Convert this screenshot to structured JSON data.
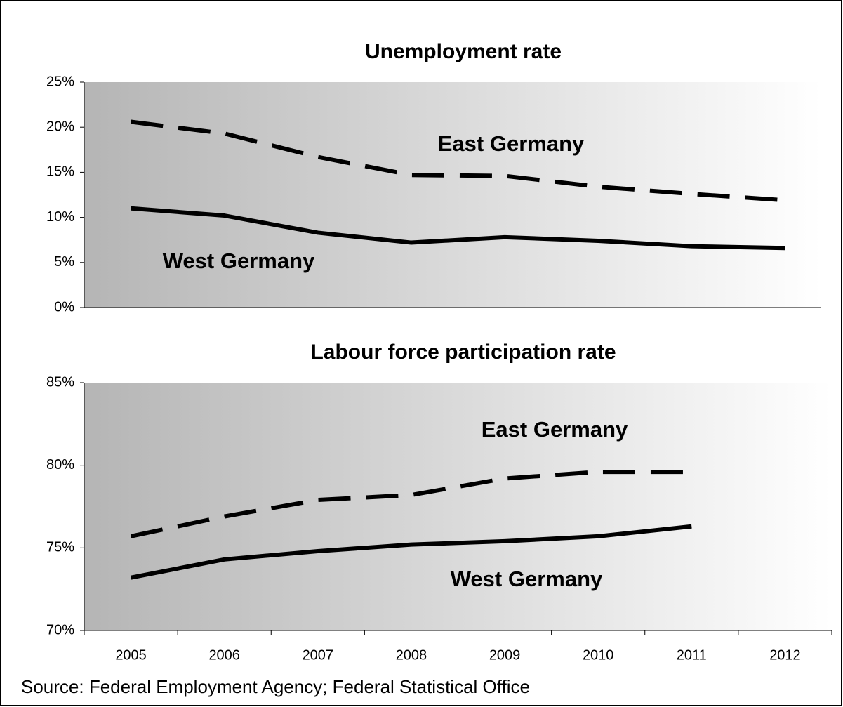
{
  "chart_data": [
    {
      "type": "line",
      "title": "Unemployment rate",
      "ylim": [
        0,
        25
      ],
      "yticks": [
        {
          "value": 0,
          "label": "0%"
        },
        {
          "value": 5,
          "label": "5%"
        },
        {
          "value": 10,
          "label": "10%"
        },
        {
          "value": 15,
          "label": "15%"
        },
        {
          "value": 20,
          "label": "20%"
        },
        {
          "value": 25,
          "label": "25%"
        }
      ],
      "series": [
        {
          "name": "East Germany",
          "color": "#000000",
          "style": "dashed",
          "values": [
            20.6,
            19.3,
            16.7,
            14.7,
            14.6,
            13.4,
            12.6,
            11.9
          ]
        },
        {
          "name": "West Germany",
          "color": "#000000",
          "style": "solid",
          "values": [
            11.0,
            10.2,
            8.3,
            7.2,
            7.8,
            7.4,
            6.8,
            6.6
          ]
        }
      ]
    },
    {
      "type": "line",
      "title": "Labour force participation rate",
      "categories": [
        "2005",
        "2006",
        "2007",
        "2008",
        "2009",
        "2010",
        "2011",
        "2012"
      ],
      "ylim": [
        70,
        85
      ],
      "yticks": [
        {
          "value": 70,
          "label": "70%"
        },
        {
          "value": 75,
          "label": "75%"
        },
        {
          "value": 80,
          "label": "80%"
        },
        {
          "value": 85,
          "label": "85%"
        }
      ],
      "series": [
        {
          "name": "East Germany",
          "color": "#000000",
          "style": "dashed",
          "values": [
            75.7,
            76.9,
            77.9,
            78.2,
            79.2,
            79.6,
            79.6,
            null
          ]
        },
        {
          "name": "West Germany",
          "color": "#000000",
          "style": "solid",
          "values": [
            73.2,
            74.3,
            74.8,
            75.2,
            75.4,
            75.7,
            76.3,
            null
          ]
        }
      ]
    }
  ],
  "source": "Source: Federal Employment Agency; Federal Statistical Office"
}
